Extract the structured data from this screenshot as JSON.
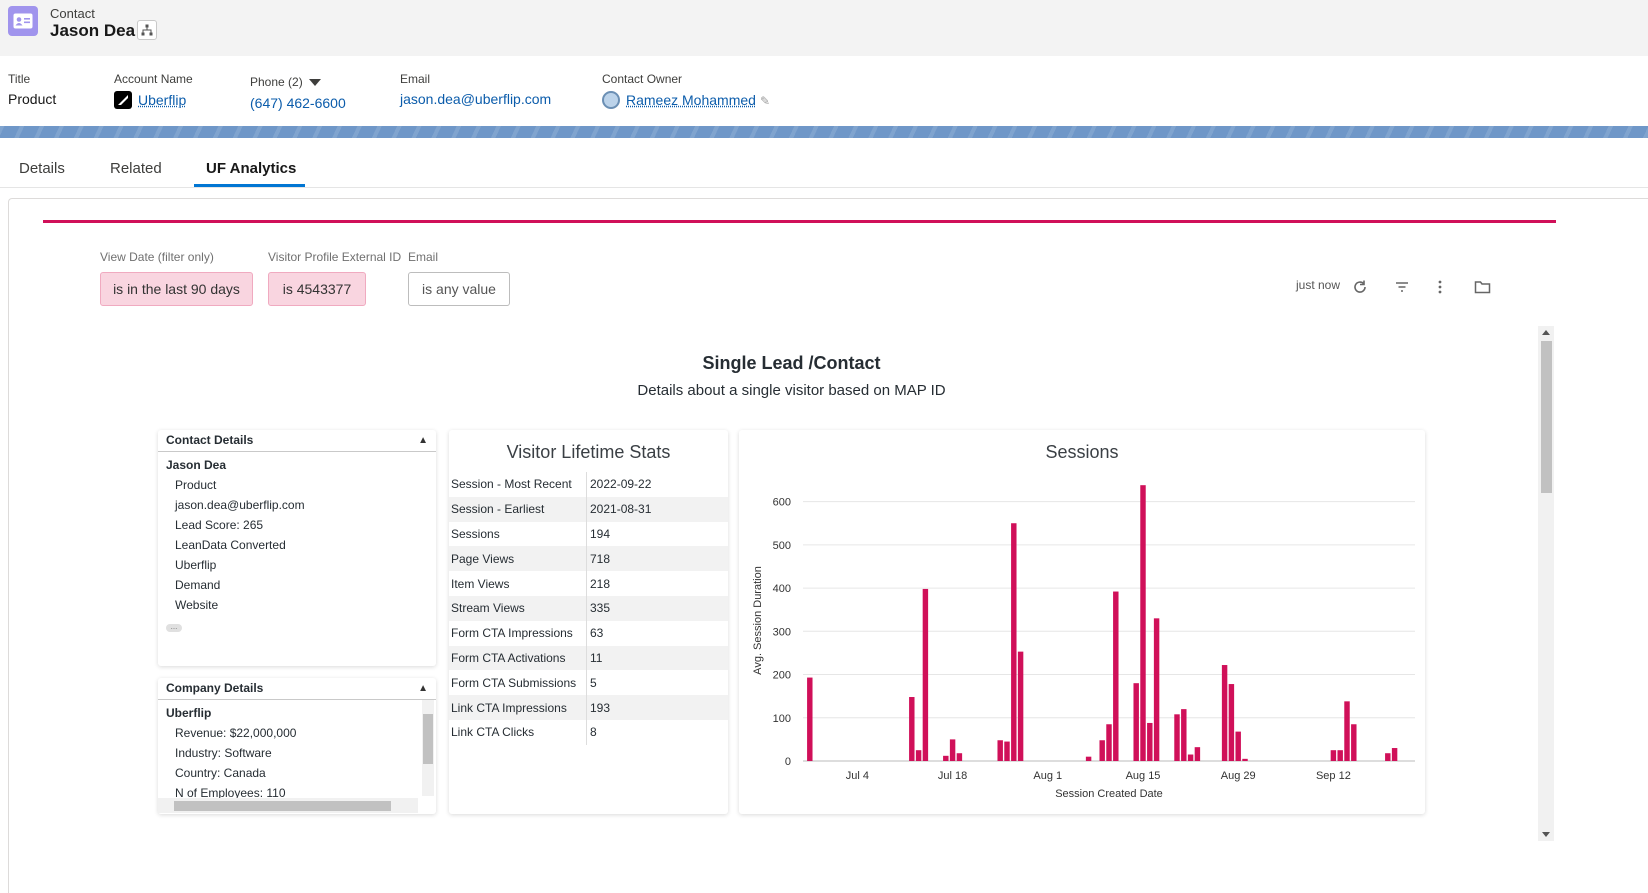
{
  "record": {
    "type": "Contact",
    "name": "Jason Dea"
  },
  "highlights": {
    "title_label": "Title",
    "title_value": "Product",
    "account_label": "Account Name",
    "account_value": "Uberflip",
    "phone_label": "Phone (2)",
    "phone_value": "(647) 462-6600",
    "email_label": "Email",
    "email_value": "jason.dea@uberflip.com",
    "owner_label": "Contact Owner",
    "owner_value": "Rameez Mohammed"
  },
  "tabs": [
    {
      "label": "Details",
      "active": false
    },
    {
      "label": "Related",
      "active": false
    },
    {
      "label": "UF Analytics",
      "active": true
    }
  ],
  "filters": [
    {
      "label": "View Date (filter only)",
      "value": "is in the last 90 days",
      "style": "pink"
    },
    {
      "label": "Visitor Profile External ID",
      "value": "is 4543377",
      "style": "pink"
    },
    {
      "label": "Email",
      "value": "is any value",
      "style": "white"
    }
  ],
  "toolbar": {
    "updated": "just now",
    "icons": [
      "refresh-icon",
      "filter-icon",
      "more-vertical-icon",
      "folder-icon"
    ]
  },
  "dashboard": {
    "title": "Single Lead /Contact",
    "subtitle": "Details about a single visitor based on MAP ID"
  },
  "contact_details": {
    "header": "Contact Details",
    "root": "Jason Dea",
    "items": [
      "Product",
      "jason.dea@uberflip.com",
      "Lead Score: 265",
      "LeanData Converted",
      "Uberflip",
      "Demand",
      "Website"
    ],
    "more": "..."
  },
  "company_details": {
    "header": "Company Details",
    "root": "Uberflip",
    "items": [
      "Revenue: $22,000,000",
      "Industry: Software",
      "Country: Canada",
      "N of Employees: 110"
    ]
  },
  "lifetime_stats": {
    "title": "Visitor Lifetime Stats",
    "rows": [
      {
        "k": "Session - Most Recent",
        "v": "2022-09-22"
      },
      {
        "k": "Session - Earliest",
        "v": "2021-08-31"
      },
      {
        "k": "Sessions",
        "v": "194"
      },
      {
        "k": "Page Views",
        "v": "718"
      },
      {
        "k": "Item Views",
        "v": "218"
      },
      {
        "k": "Stream Views",
        "v": "335"
      },
      {
        "k": "Form CTA Impressions",
        "v": "63"
      },
      {
        "k": "Form CTA Activations",
        "v": "11"
      },
      {
        "k": "Form CTA Submissions",
        "v": "5"
      },
      {
        "k": "Link CTA Impressions",
        "v": "193"
      },
      {
        "k": "Link CTA Clicks",
        "v": "8"
      }
    ]
  },
  "chart_data": {
    "type": "bar",
    "title": "Sessions",
    "xlabel": "Session Created Date",
    "ylabel": "Avg. Session Duration",
    "ylim": [
      0,
      650
    ],
    "yticks": [
      0,
      100,
      200,
      300,
      400,
      500,
      600
    ],
    "xlim": [
      "2022-06-26",
      "2022-09-24"
    ],
    "xticks": [
      {
        "date": "2022-07-04",
        "label": "Jul 4"
      },
      {
        "date": "2022-07-18",
        "label": "Jul 18"
      },
      {
        "date": "2022-08-01",
        "label": "Aug 1"
      },
      {
        "date": "2022-08-15",
        "label": "Aug 15"
      },
      {
        "date": "2022-08-29",
        "label": "Aug 29"
      },
      {
        "date": "2022-09-12",
        "label": "Sep 12"
      }
    ],
    "color": "#d01059",
    "grid": true,
    "bars": [
      {
        "date": "2022-06-27",
        "value": 193
      },
      {
        "date": "2022-07-12",
        "value": 148
      },
      {
        "date": "2022-07-13",
        "value": 25
      },
      {
        "date": "2022-07-14",
        "value": 398
      },
      {
        "date": "2022-07-17",
        "value": 12
      },
      {
        "date": "2022-07-18",
        "value": 50
      },
      {
        "date": "2022-07-19",
        "value": 18
      },
      {
        "date": "2022-07-25",
        "value": 48
      },
      {
        "date": "2022-07-26",
        "value": 45
      },
      {
        "date": "2022-07-27",
        "value": 550
      },
      {
        "date": "2022-07-28",
        "value": 253
      },
      {
        "date": "2022-08-07",
        "value": 10
      },
      {
        "date": "2022-08-09",
        "value": 48
      },
      {
        "date": "2022-08-10",
        "value": 85
      },
      {
        "date": "2022-08-11",
        "value": 392
      },
      {
        "date": "2022-08-14",
        "value": 180
      },
      {
        "date": "2022-08-15",
        "value": 638
      },
      {
        "date": "2022-08-16",
        "value": 88
      },
      {
        "date": "2022-08-17",
        "value": 330
      },
      {
        "date": "2022-08-20",
        "value": 108
      },
      {
        "date": "2022-08-21",
        "value": 120
      },
      {
        "date": "2022-08-22",
        "value": 15
      },
      {
        "date": "2022-08-23",
        "value": 32
      },
      {
        "date": "2022-08-27",
        "value": 222
      },
      {
        "date": "2022-08-28",
        "value": 178
      },
      {
        "date": "2022-08-29",
        "value": 68
      },
      {
        "date": "2022-08-30",
        "value": 5
      },
      {
        "date": "2022-09-12",
        "value": 25
      },
      {
        "date": "2022-09-13",
        "value": 25
      },
      {
        "date": "2022-09-14",
        "value": 138
      },
      {
        "date": "2022-09-15",
        "value": 85
      },
      {
        "date": "2022-09-20",
        "value": 18
      },
      {
        "date": "2022-09-21",
        "value": 30
      }
    ]
  }
}
